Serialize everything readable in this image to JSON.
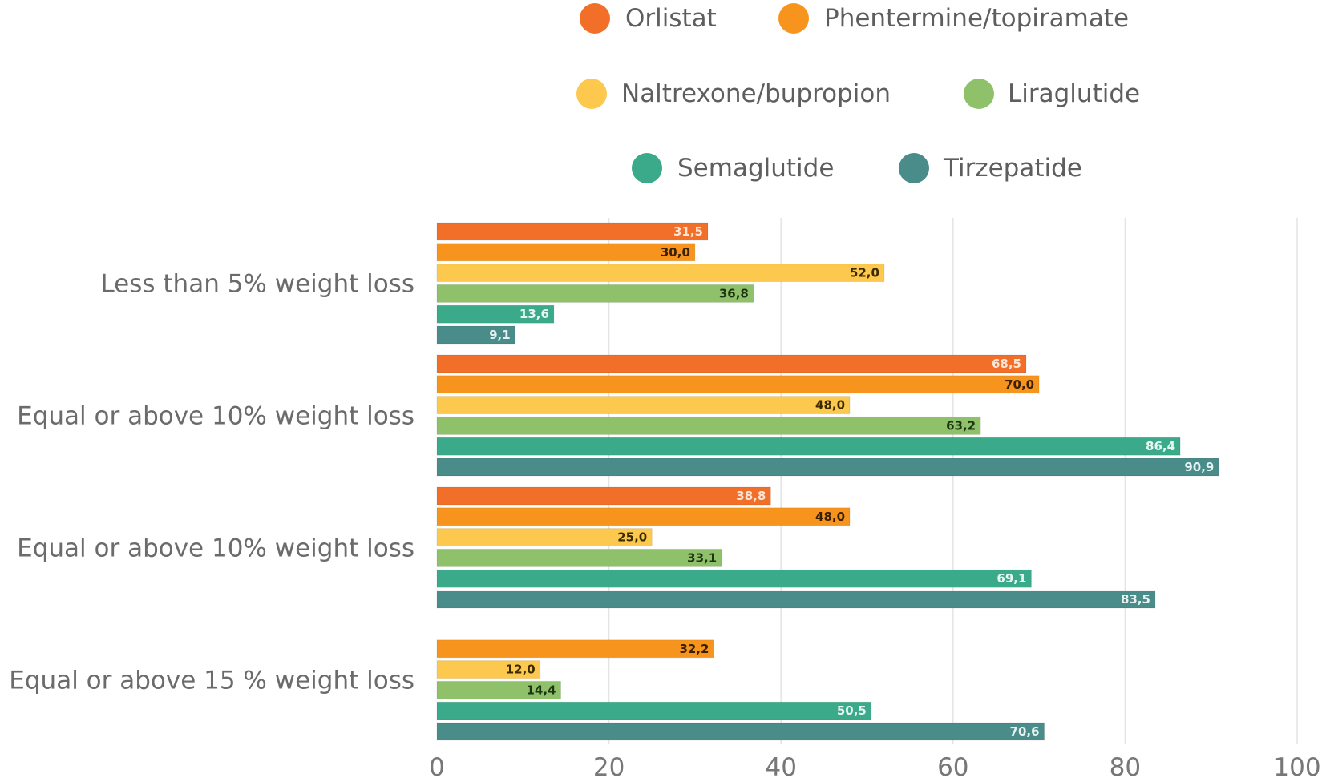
{
  "chart_data": {
    "type": "bar",
    "orientation": "horizontal",
    "title": "",
    "xlabel": "",
    "ylabel": "",
    "xlim": [
      0,
      100
    ],
    "xticks": [
      "0",
      "20",
      "40",
      "60",
      "80",
      "100"
    ],
    "grid": true,
    "legend_position": "top",
    "categories": [
      "Less than 5% weight loss",
      "Equal or above 10% weight loss",
      "Equal or above 10% weight loss",
      "Equal or above 15 % weight loss"
    ],
    "series": [
      {
        "name": "Orlistat",
        "color": "#F26F2A",
        "label_color": "#fde5d6",
        "values": [
          31.5,
          68.5,
          38.8,
          null
        ],
        "labels": [
          "31,5",
          "68,5",
          "38,8",
          null
        ]
      },
      {
        "name": "Phentermine/topiramate",
        "color": "#F7941D",
        "label_color": "#3a2000",
        "values": [
          30.0,
          70.0,
          48.0,
          32.2
        ],
        "labels": [
          "30,0",
          "70,0",
          "48,0",
          "32,2"
        ]
      },
      {
        "name": "Naltrexone/bupropion",
        "color": "#FDC84E",
        "label_color": "#3a2a00",
        "values": [
          52.0,
          48.0,
          25.0,
          12.0
        ],
        "labels": [
          "52,0",
          "48,0",
          "25,0",
          "12,0"
        ]
      },
      {
        "name": "Liraglutide",
        "color": "#8FC16A",
        "label_color": "#1e3310",
        "values": [
          36.8,
          63.2,
          33.1,
          14.4
        ],
        "labels": [
          "36,8",
          "63,2",
          "33,1",
          "14,4"
        ]
      },
      {
        "name": "Semaglutide",
        "color": "#3BAA8A",
        "label_color": "#e6f6f0",
        "values": [
          13.6,
          86.4,
          69.1,
          50.5
        ],
        "labels": [
          "13,6",
          "86,4",
          "69,1",
          "50,5"
        ]
      },
      {
        "name": "Tirzepatide",
        "color": "#4A8C8A",
        "label_color": "#e6f2f2",
        "values": [
          9.1,
          90.9,
          83.5,
          70.6
        ],
        "labels": [
          "9,1",
          "90,9",
          "83,5",
          "70,6"
        ]
      }
    ]
  }
}
